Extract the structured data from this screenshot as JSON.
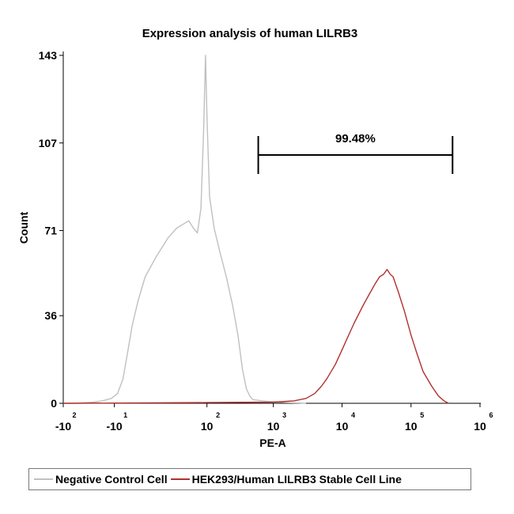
{
  "chart_data": {
    "type": "line",
    "title": "Expression analysis of human LILRB3",
    "xlabel": "PE-A",
    "ylabel": "Count",
    "x_scale": "biexponential (log)",
    "x_ticks": [
      {
        "base": "-10",
        "exp": "2",
        "value": -100
      },
      {
        "base": "-10",
        "exp": "1",
        "value": -10
      },
      {
        "base": "10",
        "exp": "2",
        "value": 100
      },
      {
        "base": "10",
        "exp": "3",
        "value": 1000
      },
      {
        "base": "10",
        "exp": "4",
        "value": 10000
      },
      {
        "base": "10",
        "exp": "5",
        "value": 100000
      },
      {
        "base": "10",
        "exp": "6",
        "value": 1000000
      }
    ],
    "y_ticks": [
      0,
      36,
      71,
      107,
      143
    ],
    "ylim": [
      0,
      143
    ],
    "grid": false,
    "gate": {
      "label": "99.48%",
      "from": 600,
      "to": 400000
    },
    "series": [
      {
        "name": "Negative Control Cell",
        "color": "#c0c0c0",
        "points": [
          [
            -400,
            0
          ],
          [
            -100,
            0
          ],
          [
            -60,
            0
          ],
          [
            -30,
            0.5
          ],
          [
            -20,
            1
          ],
          [
            -12,
            2
          ],
          [
            -8,
            4
          ],
          [
            -5,
            10
          ],
          [
            -3,
            20
          ],
          [
            -1,
            32
          ],
          [
            1,
            42
          ],
          [
            4,
            52
          ],
          [
            10,
            60
          ],
          [
            20,
            68
          ],
          [
            30,
            72
          ],
          [
            50,
            75
          ],
          [
            60,
            72
          ],
          [
            70,
            70
          ],
          [
            80,
            80
          ],
          [
            88,
            110
          ],
          [
            95,
            143
          ],
          [
            100,
            118
          ],
          [
            110,
            85
          ],
          [
            130,
            72
          ],
          [
            160,
            62
          ],
          [
            200,
            52
          ],
          [
            250,
            40
          ],
          [
            300,
            28
          ],
          [
            350,
            14
          ],
          [
            400,
            6
          ],
          [
            450,
            3
          ],
          [
            500,
            1.5
          ],
          [
            700,
            1
          ],
          [
            1000,
            0.6
          ],
          [
            1500,
            0.3
          ],
          [
            2500,
            0.1
          ],
          [
            3000,
            0
          ]
        ]
      },
      {
        "name": "HEK293/Human LILRB3 Stable Cell Line",
        "color": "#b03030",
        "points": [
          [
            -400,
            0
          ],
          [
            100,
            0.3
          ],
          [
            1000,
            0.5
          ],
          [
            2000,
            1
          ],
          [
            3000,
            2
          ],
          [
            4000,
            4
          ],
          [
            5000,
            7
          ],
          [
            6000,
            10
          ],
          [
            8000,
            16
          ],
          [
            10000,
            22
          ],
          [
            12000,
            27
          ],
          [
            15000,
            33
          ],
          [
            20000,
            40
          ],
          [
            25000,
            45
          ],
          [
            30000,
            49
          ],
          [
            35000,
            52
          ],
          [
            40000,
            53
          ],
          [
            45000,
            55
          ],
          [
            50000,
            53
          ],
          [
            55000,
            52
          ],
          [
            65000,
            46
          ],
          [
            80000,
            38
          ],
          [
            100000,
            28
          ],
          [
            120000,
            21
          ],
          [
            150000,
            13
          ],
          [
            200000,
            7
          ],
          [
            250000,
            3
          ],
          [
            300000,
            1
          ],
          [
            350000,
            0
          ]
        ]
      }
    ]
  }
}
